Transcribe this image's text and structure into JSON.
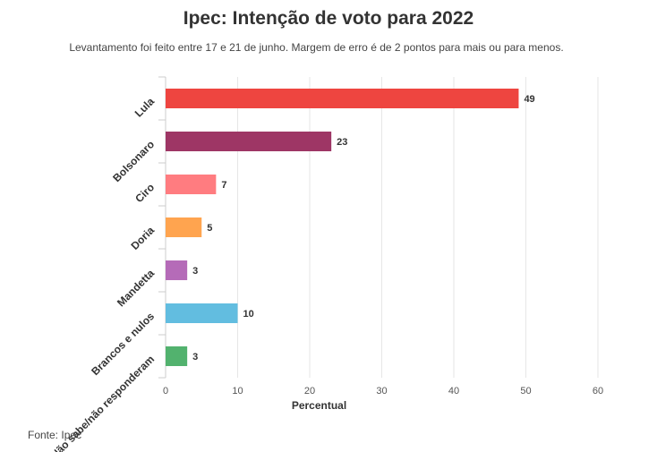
{
  "title": "Ipec: Intenção de voto para 2022",
  "subtitle": "Levantamento foi feito entre 17 e 21 de junho. Margem de erro é de 2 pontos para mais ou para menos.",
  "source": "Fonte: Ipec",
  "chart_data": {
    "type": "bar",
    "orientation": "horizontal",
    "title": "Ipec: Intenção de voto para 2022",
    "subtitle": "Levantamento foi feito entre 17 e 21 de junho. Margem de erro é de 2 pontos para mais ou para menos.",
    "categories": [
      "Lula",
      "Bolsonaro",
      "Ciro",
      "Doria",
      "Mandetta",
      "Brancos e nulos",
      "Não sabe/não responderam"
    ],
    "values": [
      49,
      23,
      7,
      5,
      3,
      10,
      3
    ],
    "colors": [
      "#ee4540",
      "#9e3665",
      "#ff7c80",
      "#ffa44f",
      "#b56bb8",
      "#62bde0",
      "#52b26e"
    ],
    "xlabel": "Percentual",
    "ylabel": "",
    "xlim": [
      0,
      60
    ],
    "xticks": [
      0,
      10,
      20,
      30,
      40,
      50,
      60
    ],
    "grid": true,
    "legend": "none"
  }
}
